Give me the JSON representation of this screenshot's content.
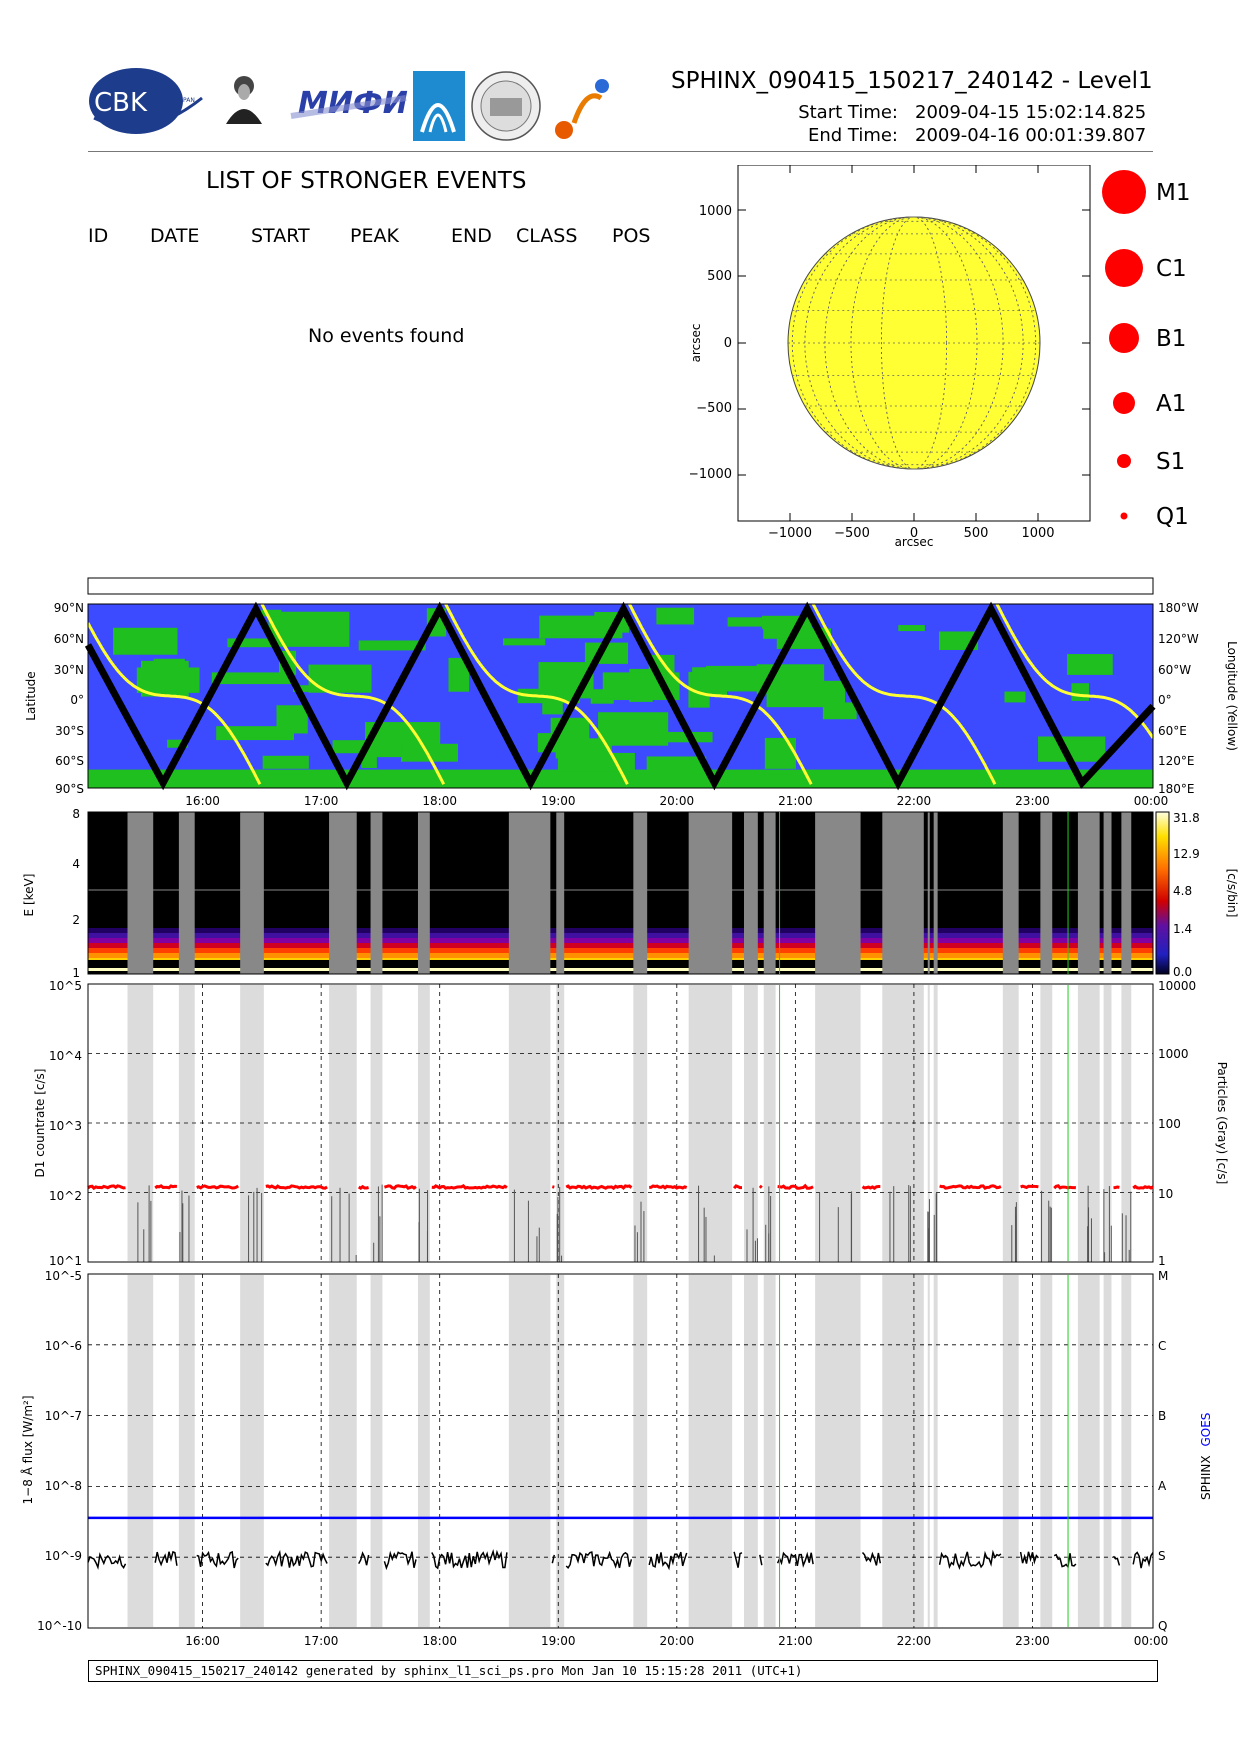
{
  "header": {
    "title": "SPHINX_090415_150217_240142 - Level1",
    "start_label": "Start Time:",
    "start_value": "2009-04-15   15:02:14.825",
    "end_label": "End Time:",
    "end_value": "2009-04-16   00:01:39.807",
    "logo_cbk": "CBK",
    "logo_cbk_sub": "PAN",
    "logo_lebedev_caption": "P.N.Lebedev Physical Institute of the Russian Academy of Science",
    "logo_miph": "МИФИ"
  },
  "events": {
    "title": "LIST OF STRONGER EVENTS",
    "columns": [
      "ID",
      "DATE",
      "START",
      "PEAK",
      "END",
      "CLASS",
      "POS"
    ],
    "message": "No events found"
  },
  "sun_map": {
    "xlabel": "arcsec",
    "ylabel": "arcsec",
    "ticks": [
      "−1000",
      "−500",
      "0",
      "500",
      "1000"
    ],
    "yticks": [
      "1000",
      "500",
      "0",
      "−500",
      "−1000"
    ],
    "disk_color": "#ffff33"
  },
  "size_legend": [
    "M1",
    "C1",
    "B1",
    "A1",
    "S1",
    "Q1"
  ],
  "footer": "SPHINX_090415_150217_240142 generated by sphinx_l1_sci_ps.pro Mon Jan 10 15:15:28 2011 (UTC+1)",
  "chart_data": [
    {
      "type": "scatter",
      "panel": "orbit",
      "ylabel": "Latitude",
      "y2label": "Longitude (Yellow)",
      "yticks": [
        "90°N",
        "60°N",
        "30°N",
        "0°",
        "30°S",
        "60°S",
        "90°S"
      ],
      "y2ticks": [
        "180°W",
        "120°W",
        "60°W",
        "0°",
        "60°E",
        "120°E",
        "180°E"
      ],
      "xticks": [
        "16:00",
        "17:00",
        "18:00",
        "19:00",
        "20:00",
        "21:00",
        "22:00",
        "23:00",
        "00:00"
      ],
      "latitude_extrema": [
        {
          "t": "15:02",
          "lat": 50
        },
        {
          "t": "15:40",
          "lat": -85
        },
        {
          "t": "16:27",
          "lat": 85
        },
        {
          "t": "17:13",
          "lat": -85
        },
        {
          "t": "18:00",
          "lat": 85
        },
        {
          "t": "18:46",
          "lat": -85
        },
        {
          "t": "19:33",
          "lat": 85
        },
        {
          "t": "20:19",
          "lat": -85
        },
        {
          "t": "21:06",
          "lat": 85
        },
        {
          "t": "21:52",
          "lat": -85
        },
        {
          "t": "22:39",
          "lat": 85
        },
        {
          "t": "23:25",
          "lat": -85
        },
        {
          "t": "00:01",
          "lat": -10
        }
      ],
      "colors": {
        "ocean": "#3c4bff",
        "land": "#1fbf1f",
        "track": "#000000",
        "longitude": "#ffff33"
      }
    },
    {
      "type": "heatmap",
      "panel": "spectrogram",
      "ylabel": "E [keV]",
      "yticks": [
        "8",
        "4",
        "2",
        "1"
      ],
      "colorbar_label": "[c/s/bin]",
      "colorbar_ticks": [
        "31.8",
        "12.9",
        "4.8",
        "1.4",
        "0.0"
      ]
    },
    {
      "type": "line",
      "panel": "d1_countrate",
      "ylabel": "D1 countrate [c/s]",
      "y2label": "Particles (Gray) [c/s]",
      "yscale": "log",
      "ylim": [
        10,
        100000
      ],
      "yticks": [
        "10^5",
        "10^4",
        "10^3",
        "10^2",
        "10^1"
      ],
      "y2ticks": [
        "10000",
        "1000",
        "100",
        "10",
        "1"
      ],
      "series": [
        {
          "name": "D1",
          "color": "#ff0000",
          "level": 120
        }
      ]
    },
    {
      "type": "line",
      "panel": "flux",
      "ylabel": "1−8 Å flux [W/m²]",
      "yscale": "log",
      "ylim": [
        1e-10,
        1e-05
      ],
      "yticks": [
        "10^-5",
        "10^-6",
        "10^-7",
        "10^-8",
        "10^-9",
        "10^-10"
      ],
      "y2ticks": [
        "M",
        "C",
        "B",
        "A",
        "S",
        "Q"
      ],
      "legend": [
        "SPHINX",
        "GOES"
      ],
      "series": [
        {
          "name": "SPHINX",
          "color": "#000000",
          "level": 1e-09
        },
        {
          "name": "GOES",
          "color": "#0000ff",
          "level": 3.6e-09
        }
      ]
    }
  ],
  "time_axis": {
    "start": "15:02",
    "end": "00:01",
    "ticks": [
      "16:00",
      "17:00",
      "18:00",
      "19:00",
      "20:00",
      "21:00",
      "22:00",
      "23:00",
      "00:00"
    ],
    "gray_intervals": [
      [
        "15:22",
        "15:35"
      ],
      [
        "15:48",
        "15:56"
      ],
      [
        "16:19",
        "16:31"
      ],
      [
        "17:04",
        "17:18"
      ],
      [
        "17:25",
        "17:31"
      ],
      [
        "17:49",
        "17:55"
      ],
      [
        "18:35",
        "18:56"
      ],
      [
        "18:59",
        "19:03"
      ],
      [
        "19:38",
        "19:45"
      ],
      [
        "20:06",
        "20:28"
      ],
      [
        "20:34",
        "20:41"
      ],
      [
        "20:44",
        "20:50"
      ],
      [
        "21:10",
        "21:33"
      ],
      [
        "21:44",
        "22:05"
      ],
      [
        "22:07",
        "22:08"
      ],
      [
        "22:10",
        "22:12"
      ],
      [
        "22:45",
        "22:53"
      ],
      [
        "23:04",
        "23:10"
      ],
      [
        "23:23",
        "23:34"
      ],
      [
        "23:36",
        "23:40"
      ],
      [
        "23:45",
        "23:50"
      ]
    ],
    "green_lines": [
      "20:52",
      "23:18"
    ]
  }
}
